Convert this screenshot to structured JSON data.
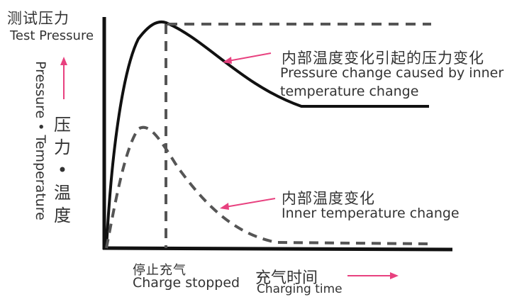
{
  "title": {
    "zh": "测试压力",
    "en": "Test Pressure"
  },
  "y_axis": {
    "en": "Pressure • Temperature",
    "zh": "压力 • 温度"
  },
  "x_axis": {
    "zh": "充气时间",
    "en": "Charging time"
  },
  "event": {
    "zh": "停止充气",
    "en": "Charge stopped"
  },
  "pressure_annotation": {
    "zh": "内部温度变化引起的压力变化",
    "en_line1": "Pressure change caused by inner",
    "en_line2": "temperature change"
  },
  "temperature_annotation": {
    "zh": "内部温度变化",
    "en": "Inner temperature change"
  },
  "colors": {
    "arrow": "#e8417f",
    "curve": "#111111",
    "dashed": "#555555",
    "text": "#333333"
  }
}
